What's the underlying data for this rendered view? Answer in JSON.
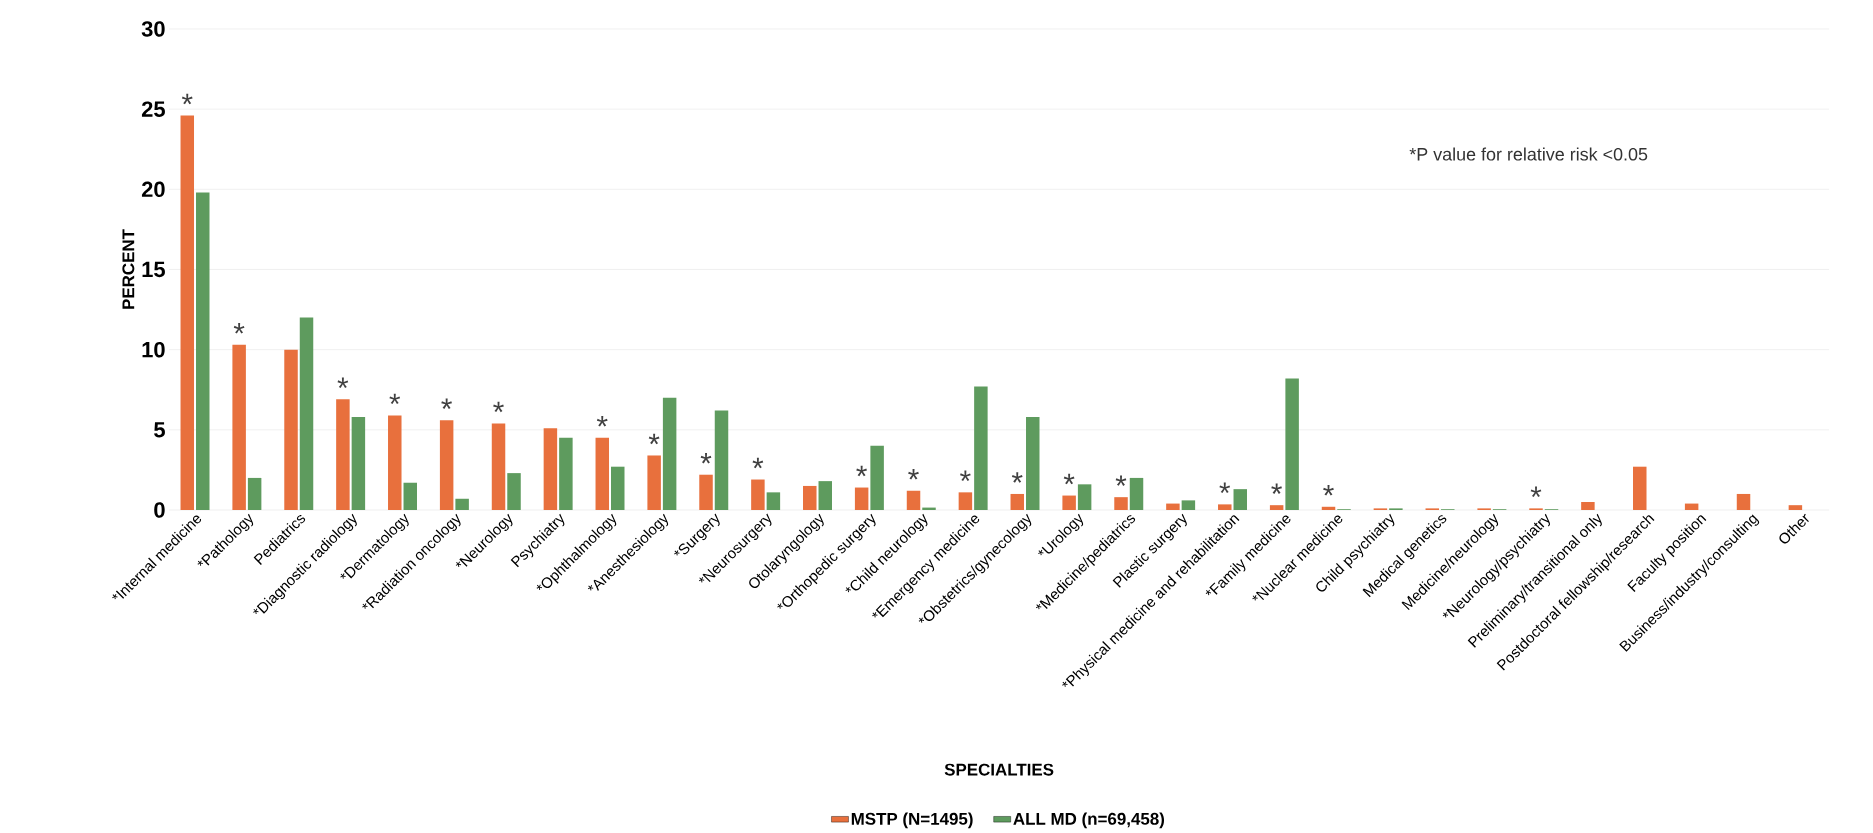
{
  "chart_data": {
    "type": "bar",
    "xlabel": "SPECIALTIES",
    "ylabel": "PERCENT",
    "categories": [
      "*Internal medicine",
      "*Pathology",
      "Pediatrics",
      "*Diagnostic radiology",
      "*Dermatology",
      "*Radiation oncology",
      "*Neurology",
      "Psychiatry",
      "*Ophthalmology",
      "*Anesthesiology",
      "*Surgery",
      "*Neurosurgery",
      "Otolaryngology",
      "*Orthopedic surgery",
      "*Child neurology",
      "*Emergency medicine",
      "*Obstetrics/gynecology",
      "*Urology",
      "*Medicine/pediatrics",
      "Plastic surgery",
      "*Physical medicine and rehabilitation",
      "*Family medicine",
      "*Nuclear medicine",
      "Child psychiatry",
      "Medical genetics",
      "Medicine/neurology",
      "*Neurology/psychiatry",
      "Preliminary/transitional only",
      "Postdoctoral fellowship/research",
      "Faculty position",
      "Business/industry/consulting",
      "Other"
    ],
    "series": [
      {
        "name": "MSTP (N=1495)",
        "color": "#e8703d",
        "values": [
          24.6,
          10.3,
          10.0,
          6.9,
          5.9,
          5.6,
          5.4,
          5.1,
          4.5,
          3.4,
          2.2,
          1.9,
          1.5,
          1.4,
          1.2,
          1.1,
          1.0,
          0.9,
          0.8,
          0.4,
          0.35,
          0.3,
          0.2,
          0.1,
          0.1,
          0.1,
          0.1,
          0.5,
          2.7,
          0.4,
          1.0,
          0.3
        ]
      },
      {
        "name": "ALL MD (n=69,458)",
        "color": "#5e9b5e",
        "values": [
          19.8,
          2.0,
          12.0,
          5.8,
          1.7,
          0.7,
          2.3,
          4.5,
          2.7,
          7.0,
          6.2,
          1.1,
          1.8,
          4.0,
          0.15,
          7.7,
          5.8,
          1.6,
          2.0,
          0.6,
          1.3,
          8.2,
          0.05,
          0.1,
          0.05,
          0.05,
          0.05,
          null,
          null,
          null,
          null,
          null
        ]
      }
    ],
    "ylim": [
      0,
      30
    ],
    "yticks": [
      0,
      5,
      10,
      15,
      20,
      25,
      30
    ],
    "grid": "y",
    "legend": "bottom",
    "annotations": [
      "*P value for relative risk <0.05",
      {
        "text": "*",
        "x": "*Internal medicine",
        "y": 24.6
      },
      {
        "text": "*",
        "x": "*Pathology",
        "y": 10.3
      },
      {
        "text": "*",
        "x": "*Diagnostic radiology",
        "y": 6.9
      },
      {
        "text": "*",
        "x": "*Dermatology",
        "y": 5.9
      },
      {
        "text": "*",
        "x": "*Radiation oncology",
        "y": 5.6
      },
      {
        "text": "*",
        "x": "*Neurology",
        "y": 5.4
      },
      {
        "text": "*",
        "x": "*Ophthalmology",
        "y": 4.5
      },
      {
        "text": "*",
        "x": "*Anesthesiology",
        "y": 3.4
      },
      {
        "text": "*",
        "x": "*Surgery",
        "y": 2.2
      },
      {
        "text": "*",
        "x": "*Neurosurgery",
        "y": 1.9
      },
      {
        "text": "*",
        "x": "*Orthopedic surgery",
        "y": 1.4
      },
      {
        "text": "*",
        "x": "*Child neurology",
        "y": 1.2
      },
      {
        "text": "*",
        "x": "*Emergency medicine",
        "y": 1.1
      },
      {
        "text": "*",
        "x": "*Obstetrics/gynecology",
        "y": 1.0
      },
      {
        "text": "*",
        "x": "*Urology",
        "y": 0.9
      },
      {
        "text": "*",
        "x": "*Medicine/pediatrics",
        "y": 0.8
      },
      {
        "text": "*",
        "x": "*Physical medicine and rehabilitation",
        "y": 0.35
      },
      {
        "text": "*",
        "x": "*Family medicine",
        "y": 0.3
      },
      {
        "text": "*",
        "x": "*Nuclear medicine",
        "y": 0.2
      },
      {
        "text": "*",
        "x": "*Neurology/psychiatry",
        "y": 0.1
      }
    ]
  }
}
